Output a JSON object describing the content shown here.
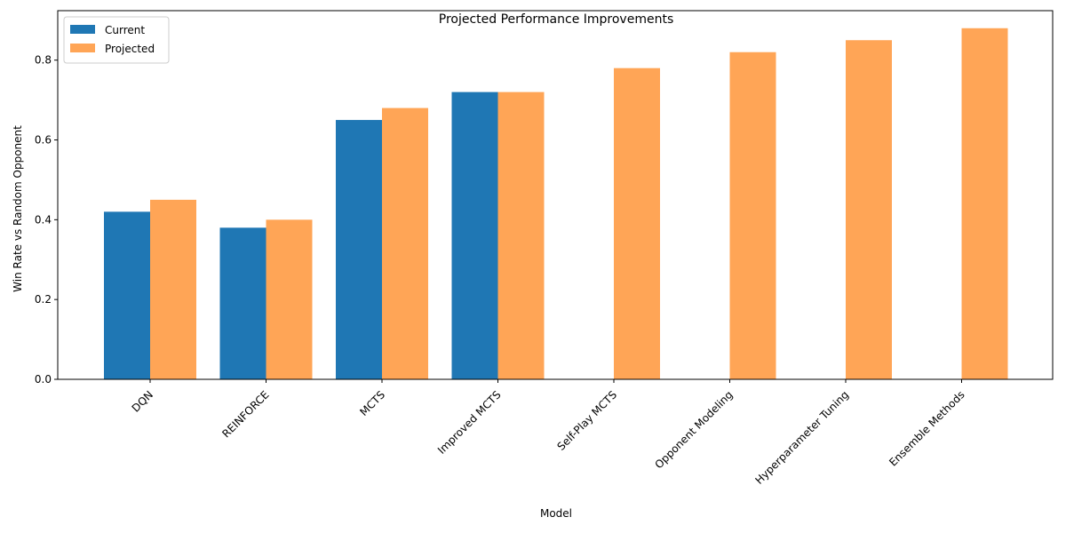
{
  "chart_data": {
    "type": "bar",
    "title": "Projected Performance Improvements",
    "xlabel": "Model",
    "ylabel": "Win Rate vs Random Opponent",
    "categories": [
      "DQN",
      "REINFORCE",
      "MCTS",
      "Improved MCTS",
      "Self-Play MCTS",
      "Opponent Modeling",
      "Hyperparameter Tuning",
      "Ensemble Methods"
    ],
    "series": [
      {
        "name": "Current",
        "color": "#1f77b4",
        "opacity": 1.0,
        "values": [
          0.42,
          0.38,
          0.65,
          0.72,
          null,
          null,
          null,
          null
        ]
      },
      {
        "name": "Projected",
        "color": "#ff7f0e",
        "opacity": 0.7,
        "values": [
          0.45,
          0.4,
          0.68,
          0.72,
          0.78,
          0.82,
          0.85,
          0.88
        ]
      }
    ],
    "ylim": [
      0,
      0.924
    ],
    "yticks": [
      "0.0",
      "0.2",
      "0.4",
      "0.6",
      "0.8"
    ],
    "tick_label_rotation": 45,
    "grid": false,
    "legend_position": "upper-left"
  }
}
